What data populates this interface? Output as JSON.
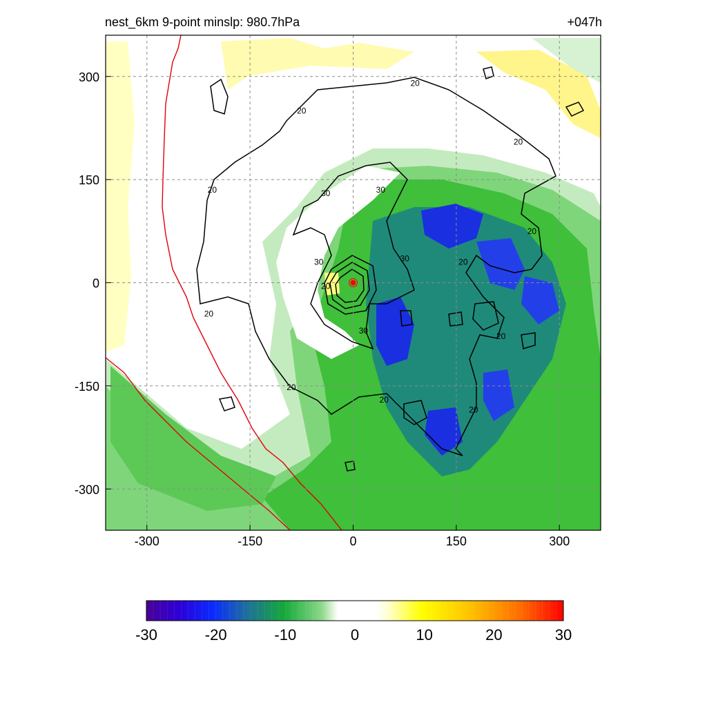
{
  "header": {
    "title": "nest_6km  9-point minslp: 980.7hPa",
    "forecast_hour": "+047h"
  },
  "chart_data": {
    "type": "heatmap",
    "title": "nest_6km  9-point minslp: 980.7hPa",
    "annotation": "+047h",
    "xlim": [
      -360,
      360
    ],
    "ylim": [
      -360,
      360
    ],
    "x_ticks": [
      -300,
      -150,
      0,
      150,
      300
    ],
    "y_ticks": [
      300,
      150,
      0,
      -150,
      -300
    ],
    "grid": "dashed",
    "storm_center": [
      0,
      0
    ],
    "contour_levels": [
      20,
      30
    ],
    "contour_labels": [
      {
        "text": "20",
        "x": 90,
        "y": 290
      },
      {
        "text": "20",
        "x": -75,
        "y": 250
      },
      {
        "text": "20",
        "x": 240,
        "y": 205
      },
      {
        "text": "20",
        "x": -205,
        "y": 135
      },
      {
        "text": "30",
        "x": -40,
        "y": 130
      },
      {
        "text": "30",
        "x": 40,
        "y": 135
      },
      {
        "text": "20",
        "x": 260,
        "y": 75
      },
      {
        "text": "30",
        "x": 75,
        "y": 35
      },
      {
        "text": "20",
        "x": 160,
        "y": 30
      },
      {
        "text": "30",
        "x": -50,
        "y": 30
      },
      {
        "text": "20",
        "x": -40,
        "y": -5
      },
      {
        "text": "20",
        "x": -210,
        "y": -45
      },
      {
        "text": "30",
        "x": 15,
        "y": -70
      },
      {
        "text": "20",
        "x": 215,
        "y": -78
      },
      {
        "text": "20",
        "x": -90,
        "y": -152
      },
      {
        "text": "20",
        "x": 45,
        "y": -170
      },
      {
        "text": "20",
        "x": 175,
        "y": -185
      }
    ],
    "colorbar": {
      "min": -30,
      "max": 30,
      "tick_labels": [
        "-30",
        "-20",
        "-10",
        "0",
        "10",
        "20",
        "30"
      ],
      "tick_values": [
        -30,
        -20,
        -10,
        0,
        10,
        20,
        30
      ]
    }
  }
}
